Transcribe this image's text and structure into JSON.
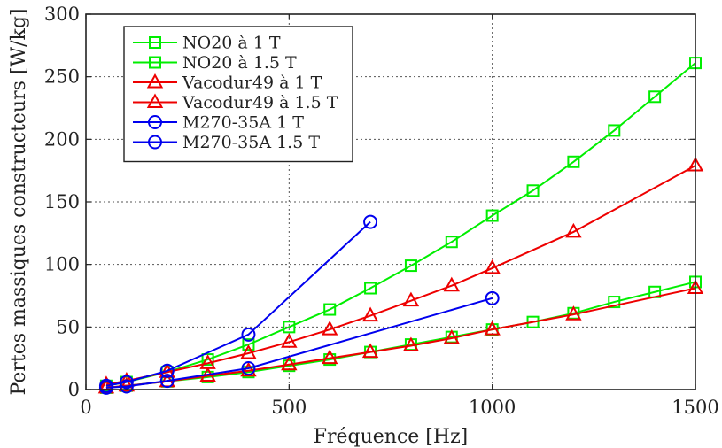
{
  "chart_data": {
    "type": "line",
    "title": "",
    "xlabel": "Fréquence [Hz]",
    "ylabel": "Pertes massiques constructeurs [W/kg]",
    "xlim": [
      0,
      1500
    ],
    "ylim": [
      0,
      300
    ],
    "xticks": [
      0,
      500,
      1000,
      1500
    ],
    "yticks": [
      0,
      50,
      100,
      150,
      200,
      250,
      300
    ],
    "grid": true,
    "legend_position": "top-left",
    "series": [
      {
        "name": "NO20 à 1 T",
        "color": "#00ee00",
        "marker": "square",
        "x": [
          50,
          100,
          200,
          300,
          400,
          500,
          600,
          700,
          800,
          900,
          1000,
          1100,
          1200,
          1300,
          1400,
          1500
        ],
        "y": [
          1.5,
          3,
          6.5,
          10,
          14,
          19,
          24,
          30,
          36,
          42,
          48,
          54,
          61,
          70,
          78,
          86
        ]
      },
      {
        "name": "NO20 à 1.5 T",
        "color": "#00ee00",
        "marker": "square",
        "x": [
          50,
          100,
          200,
          300,
          400,
          500,
          600,
          700,
          800,
          900,
          1000,
          1100,
          1200,
          1300,
          1400,
          1500
        ],
        "y": [
          3,
          6,
          14,
          24,
          36,
          50,
          64,
          81,
          99,
          118,
          139,
          159,
          182,
          207,
          234,
          261
        ]
      },
      {
        "name": "Vacodur49 à 1 T",
        "color": "#ee0000",
        "marker": "triangle",
        "x": [
          50,
          100,
          200,
          300,
          400,
          500,
          600,
          700,
          800,
          900,
          1000,
          1200,
          1500
        ],
        "y": [
          1.5,
          3,
          6.5,
          11,
          15,
          20,
          25,
          30,
          35,
          41,
          48,
          60,
          81
        ]
      },
      {
        "name": "Vacodur49 à 1.5 T",
        "color": "#ee0000",
        "marker": "triangle",
        "x": [
          50,
          100,
          200,
          300,
          400,
          500,
          600,
          700,
          800,
          900,
          1000,
          1200,
          1500
        ],
        "y": [
          4,
          7,
          14,
          21,
          29,
          38,
          48,
          59,
          71,
          83,
          97,
          126,
          179
        ]
      },
      {
        "name": "M270-35A 1 T",
        "color": "#0000ee",
        "marker": "circle",
        "x": [
          50,
          100,
          200,
          400,
          1000
        ],
        "y": [
          1.5,
          2.5,
          7,
          17,
          73
        ]
      },
      {
        "name": "M270-35A 1.5 T",
        "color": "#0000ee",
        "marker": "circle",
        "x": [
          50,
          100,
          200,
          400,
          700
        ],
        "y": [
          3,
          6,
          15,
          44,
          134
        ]
      }
    ]
  }
}
